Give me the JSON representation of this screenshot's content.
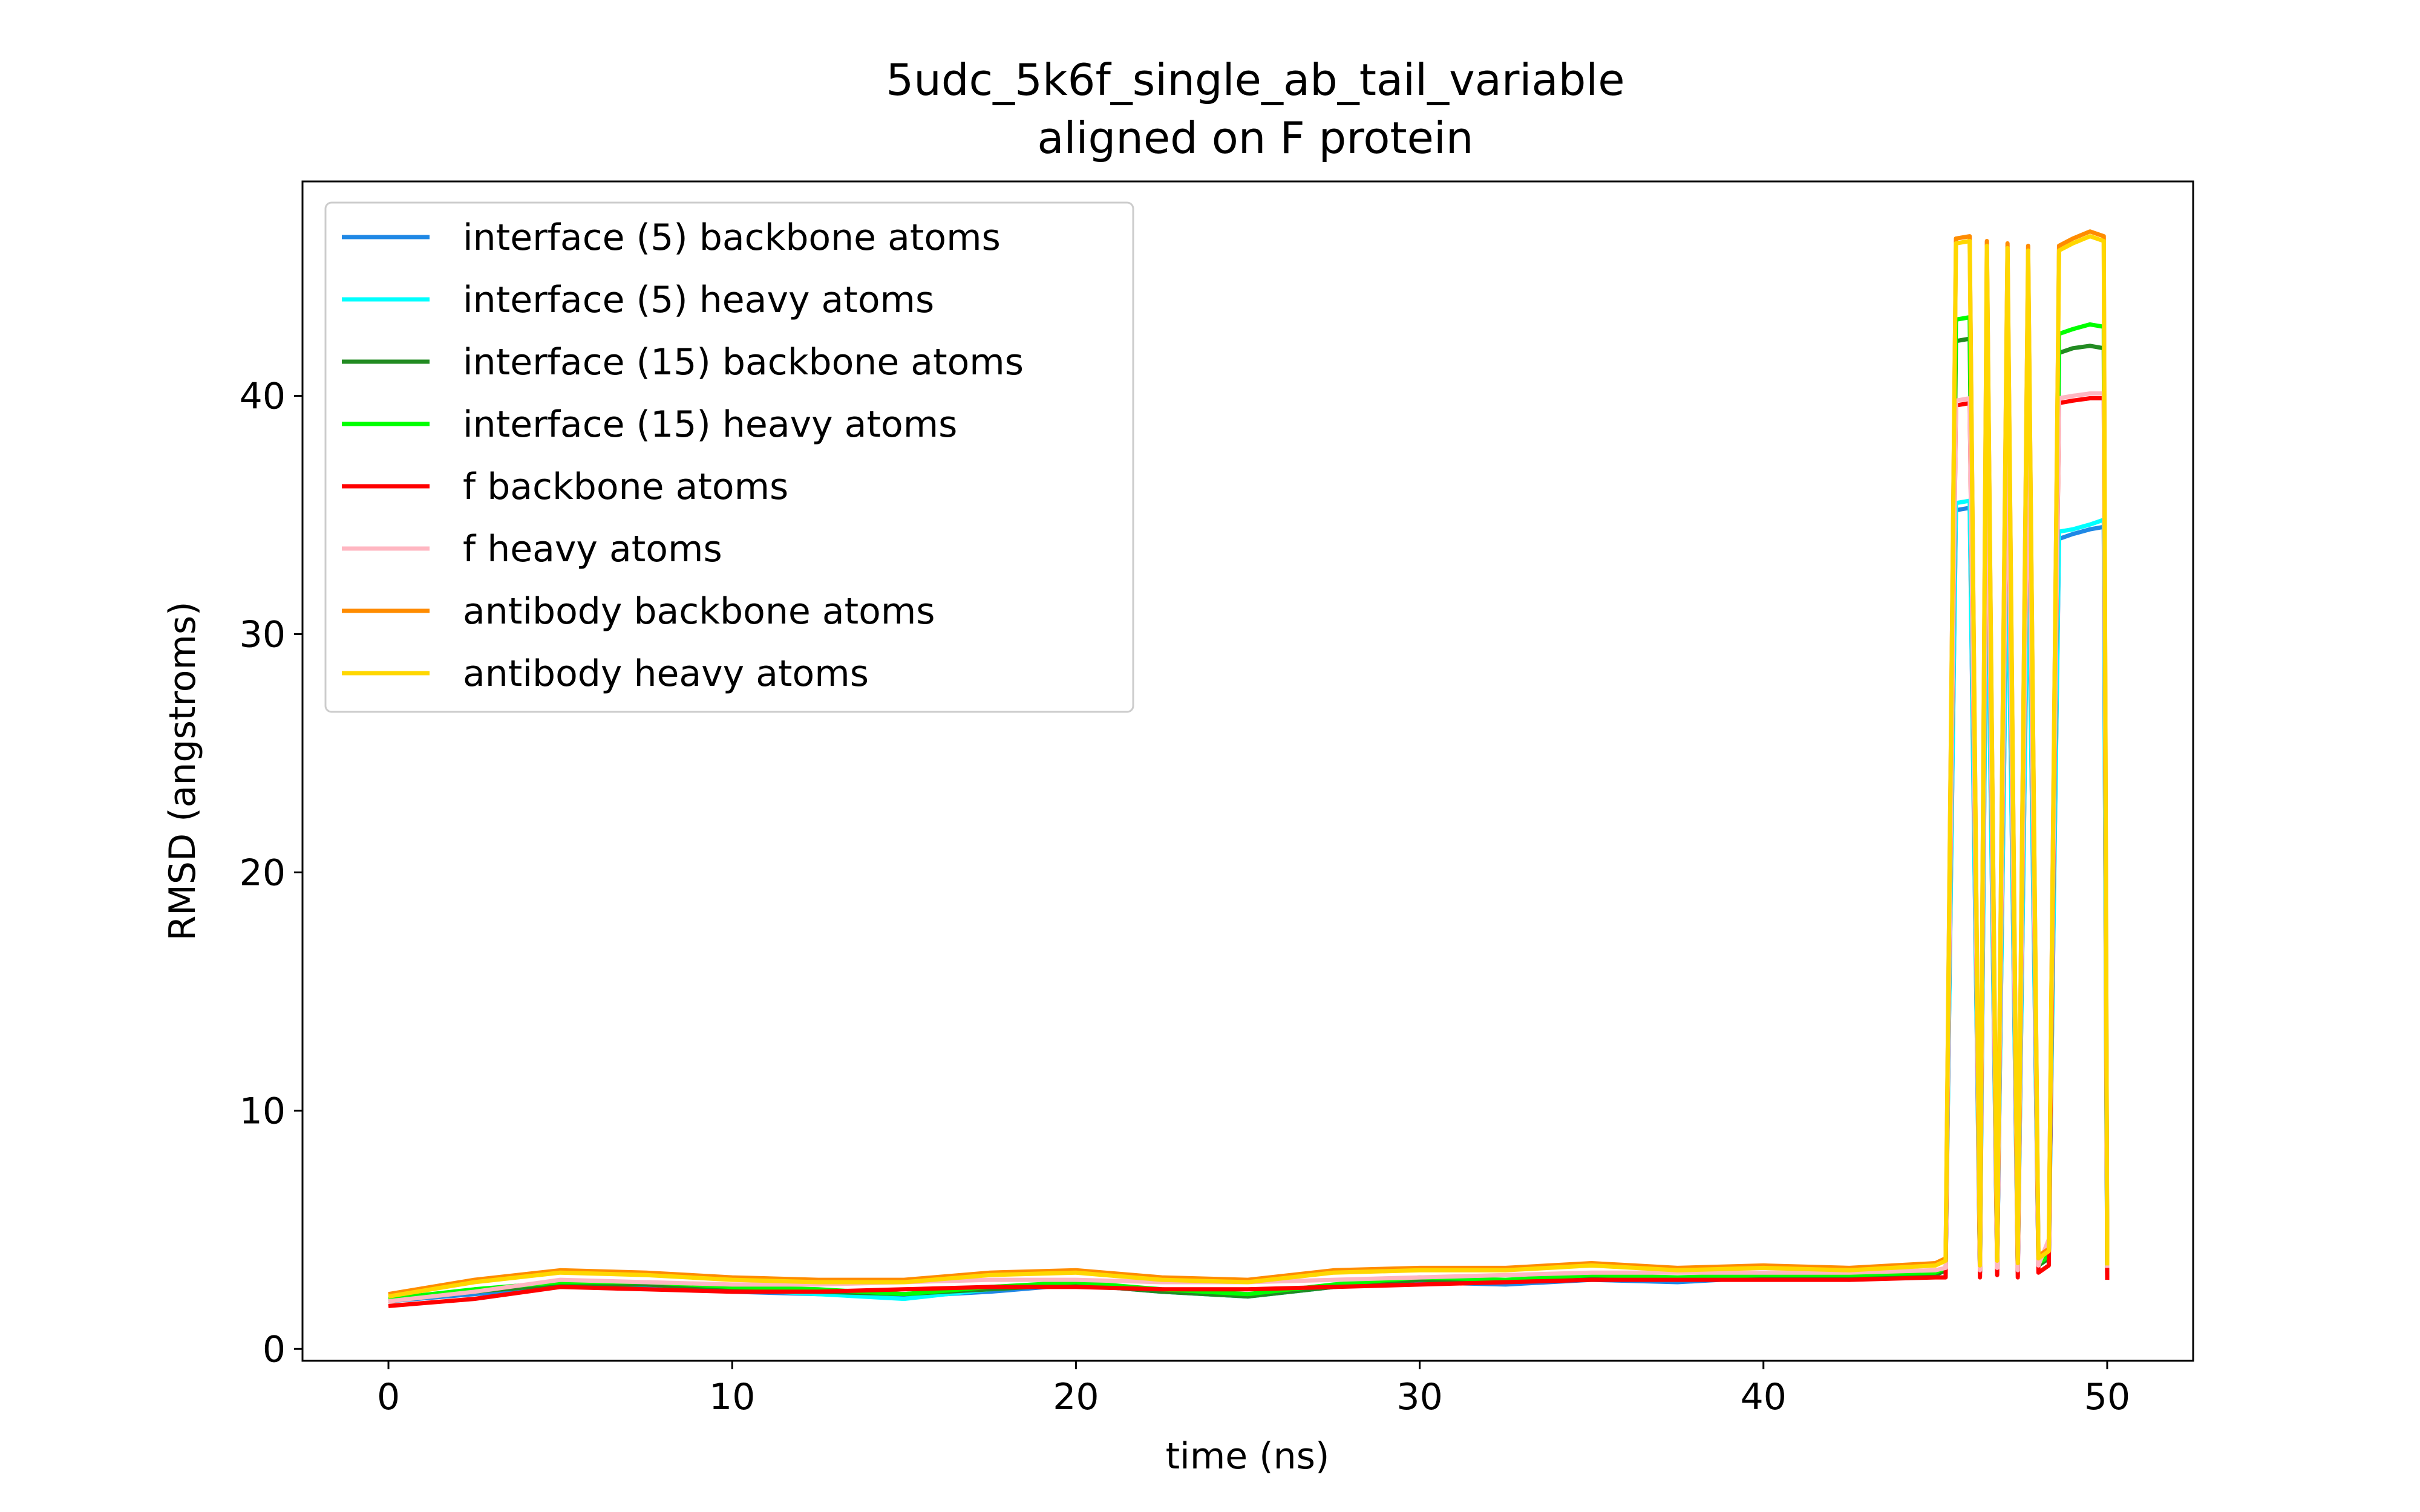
{
  "chart_data": {
    "type": "line",
    "title": "5udc_5k6f_single_ab_tail_variable",
    "subtitle": "aligned on F protein",
    "xlabel": "time (ns)",
    "ylabel": "RMSD (angstroms)",
    "xlim": [
      -2.5,
      52.5
    ],
    "ylim": [
      -0.5,
      49
    ],
    "xticks": [
      0,
      10,
      20,
      30,
      40,
      50
    ],
    "yticks": [
      0,
      10,
      20,
      30,
      40
    ],
    "grid": false,
    "legend_position": "top-left",
    "x": [
      0,
      2.5,
      5,
      7.5,
      10,
      12.5,
      15,
      17.5,
      20,
      22.5,
      25,
      27.5,
      30,
      32.5,
      35,
      37.5,
      40,
      42.5,
      45,
      45.3,
      45.6,
      46,
      46.3,
      46.5,
      46.8,
      47.1,
      47.4,
      47.7,
      48,
      48.3,
      48.6,
      49,
      49.5,
      49.9,
      50
    ],
    "series": [
      {
        "name": "interface (5) backbone atoms",
        "color": "#1f88e5",
        "values": [
          2.0,
          2.3,
          2.6,
          2.6,
          2.4,
          2.3,
          2.2,
          2.4,
          2.7,
          2.4,
          2.2,
          2.6,
          2.8,
          2.7,
          2.9,
          2.8,
          3.0,
          2.9,
          3.1,
          3.3,
          35.2,
          35.3,
          3.2,
          35.0,
          3.4,
          34.8,
          3.3,
          34.5,
          3.5,
          3.8,
          34.0,
          34.2,
          34.4,
          34.5,
          3.0
        ]
      },
      {
        "name": "interface (5) heavy atoms",
        "color": "#00ffff",
        "values": [
          2.1,
          2.4,
          2.7,
          2.7,
          2.5,
          2.3,
          2.1,
          2.5,
          2.8,
          2.4,
          2.2,
          2.6,
          2.9,
          2.8,
          3.0,
          2.9,
          3.1,
          3.0,
          3.2,
          3.4,
          35.5,
          35.6,
          3.3,
          35.3,
          3.5,
          35.0,
          3.4,
          34.8,
          3.6,
          3.9,
          34.3,
          34.4,
          34.6,
          34.8,
          3.1
        ]
      },
      {
        "name": "interface (15) backbone atoms",
        "color": "#228b22",
        "values": [
          2.0,
          2.4,
          2.7,
          2.7,
          2.5,
          2.4,
          2.3,
          2.5,
          2.7,
          2.4,
          2.2,
          2.6,
          2.9,
          2.8,
          3.0,
          2.9,
          3.0,
          3.0,
          3.1,
          3.3,
          42.3,
          42.4,
          3.2,
          42.2,
          3.4,
          42.0,
          3.3,
          41.8,
          3.5,
          3.8,
          41.8,
          42.0,
          42.1,
          42.0,
          3.0
        ]
      },
      {
        "name": "interface (15) heavy atoms",
        "color": "#00ff00",
        "values": [
          2.1,
          2.5,
          2.8,
          2.8,
          2.6,
          2.5,
          2.3,
          2.6,
          2.8,
          2.5,
          2.3,
          2.7,
          3.0,
          2.9,
          3.1,
          3.0,
          3.1,
          3.1,
          3.2,
          3.4,
          43.2,
          43.3,
          3.3,
          43.0,
          3.5,
          42.8,
          3.4,
          42.7,
          3.6,
          3.9,
          42.6,
          42.8,
          43.0,
          42.9,
          3.1
        ]
      },
      {
        "name": "f backbone atoms",
        "color": "#ff0000",
        "values": [
          1.8,
          2.1,
          2.6,
          2.5,
          2.4,
          2.4,
          2.5,
          2.6,
          2.6,
          2.5,
          2.5,
          2.6,
          2.7,
          2.8,
          2.9,
          2.9,
          2.9,
          2.9,
          3.0,
          3.0,
          39.6,
          39.7,
          3.0,
          39.7,
          3.1,
          39.6,
          3.0,
          39.6,
          3.2,
          3.5,
          39.7,
          39.8,
          39.9,
          39.9,
          2.9
        ]
      },
      {
        "name": "f heavy atoms",
        "color": "#ffb6c1",
        "values": [
          2.0,
          2.4,
          2.9,
          2.8,
          2.7,
          2.7,
          2.8,
          2.9,
          2.9,
          2.8,
          2.8,
          2.9,
          3.0,
          3.1,
          3.2,
          3.2,
          3.2,
          3.2,
          3.3,
          3.4,
          39.8,
          39.9,
          3.3,
          39.9,
          3.4,
          39.8,
          3.3,
          39.8,
          3.5,
          4.6,
          39.9,
          40.0,
          40.1,
          40.1,
          3.4
        ]
      },
      {
        "name": "antibody backbone atoms",
        "color": "#ff8c00",
        "values": [
          2.3,
          2.9,
          3.3,
          3.2,
          3.0,
          2.9,
          2.9,
          3.2,
          3.3,
          3.0,
          2.9,
          3.3,
          3.4,
          3.4,
          3.6,
          3.4,
          3.5,
          3.4,
          3.6,
          3.8,
          46.6,
          46.7,
          3.6,
          46.5,
          3.8,
          46.4,
          3.7,
          46.3,
          3.9,
          4.2,
          46.3,
          46.6,
          46.9,
          46.7,
          3.6
        ]
      },
      {
        "name": "antibody heavy atoms",
        "color": "#ffd700",
        "values": [
          2.2,
          2.8,
          3.2,
          3.1,
          2.9,
          2.8,
          2.8,
          3.1,
          3.2,
          2.9,
          2.8,
          3.2,
          3.3,
          3.3,
          3.5,
          3.3,
          3.4,
          3.3,
          3.5,
          3.7,
          46.4,
          46.5,
          3.5,
          46.3,
          3.7,
          46.2,
          3.6,
          46.1,
          3.8,
          4.1,
          46.1,
          46.4,
          46.7,
          46.5,
          3.5
        ]
      }
    ]
  }
}
